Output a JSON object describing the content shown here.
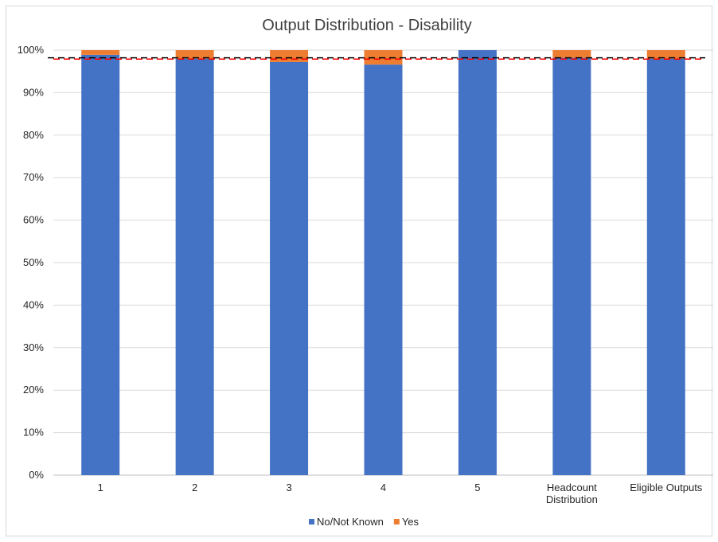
{
  "chart_data": {
    "type": "bar",
    "stacked": true,
    "title": "Output Distribution - Disability",
    "xlabel": "",
    "ylabel": "",
    "ylim": [
      0,
      100
    ],
    "y_ticks": [
      "0%",
      "10%",
      "20%",
      "30%",
      "40%",
      "50%",
      "60%",
      "70%",
      "80%",
      "90%",
      "100%"
    ],
    "categories": [
      [
        "1"
      ],
      [
        "2"
      ],
      [
        "3"
      ],
      [
        "4"
      ],
      [
        "5"
      ],
      [
        "Headcount",
        "Distribution"
      ],
      [
        "Eligible Outputs"
      ]
    ],
    "series": [
      {
        "name": "No/Not Known",
        "color": "#4472c4",
        "values": [
          98.9,
          98.0,
          97.2,
          96.6,
          100.0,
          98.2,
          98.0
        ]
      },
      {
        "name": "Yes",
        "color": "#ed7d31",
        "values": [
          1.1,
          2.0,
          2.8,
          3.4,
          0.0,
          1.8,
          2.0
        ]
      }
    ],
    "reference_lines": [
      {
        "value": 98.2,
        "color": "#000000",
        "style": "dashed"
      },
      {
        "value": 97.9,
        "color": "#ff0000",
        "style": "dashed"
      }
    ],
    "grid": true,
    "legend_position": "bottom"
  }
}
